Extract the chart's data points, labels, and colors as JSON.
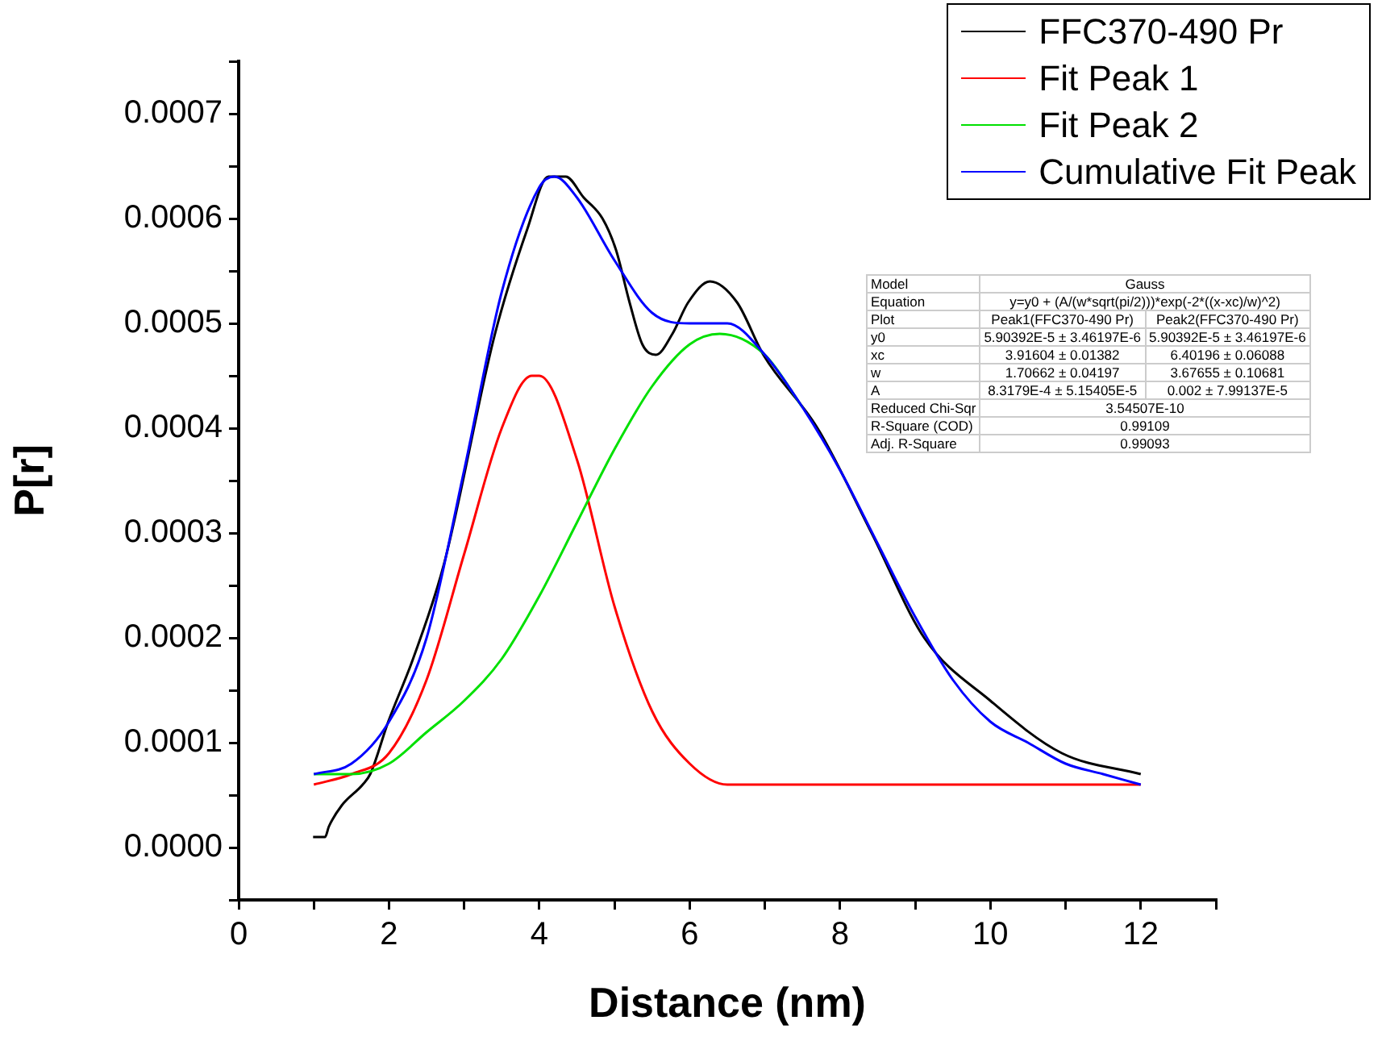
{
  "chart_data": {
    "type": "line",
    "xlabel": "Distance (nm)",
    "ylabel": "P[r]",
    "legend": "top right",
    "xlim": [
      0,
      13
    ],
    "xticks": [
      0,
      {
        "value": 1,
        "label": null
      },
      2,
      {
        "value": 3,
        "label": null
      },
      4,
      {
        "value": 5,
        "label": null
      },
      6,
      {
        "value": 7,
        "label": null
      },
      8,
      {
        "value": 9,
        "label": null
      },
      10,
      {
        "value": 11,
        "label": null
      },
      12,
      {
        "value": 13,
        "label": null
      }
    ],
    "ylim": [
      -5e-05,
      0.00075
    ],
    "yticks": [
      {
        "value": -5e-05,
        "label": null
      },
      {
        "value": 0,
        "label": "0.0000"
      },
      {
        "value": 5e-05,
        "label": null
      },
      {
        "value": 0.0001,
        "label": "0.0001"
      },
      {
        "value": 0.00015,
        "label": null
      },
      {
        "value": 0.0002,
        "label": "0.0002"
      },
      {
        "value": 0.00025,
        "label": null
      },
      {
        "value": 0.0003,
        "label": "0.0003"
      },
      {
        "value": 0.00035,
        "label": null
      },
      {
        "value": 0.0004,
        "label": "0.0004"
      },
      {
        "value": 0.00045,
        "label": null
      },
      {
        "value": 0.0005,
        "label": "0.0005"
      },
      {
        "value": 0.00055,
        "label": null
      },
      {
        "value": 0.0006,
        "label": "0.0006"
      },
      {
        "value": 0.00065,
        "label": null
      },
      {
        "value": 0.0007,
        "label": "0.0007"
      },
      {
        "value": 0.00075,
        "label": null
      }
    ],
    "series": [
      {
        "name": "FFC370-490 Pr",
        "color": "#000000",
        "x": [
          0.99,
          1.15,
          1.2,
          1.37,
          1.65,
          1.75,
          1.99,
          2.32,
          2.73,
          3.41,
          3.84,
          4.12,
          4.35,
          4.59,
          4.84,
          5.02,
          5.2,
          5.37,
          5.55,
          5.77,
          5.98,
          6.27,
          6.63,
          6.98,
          7.7,
          8.42,
          9.12,
          10.0,
          10.95,
          12.0
        ],
        "values": [
          1e-05,
          1e-05,
          2e-05,
          4e-05,
          6e-05,
          7e-05,
          0.00012,
          0.00018,
          0.00027,
          0.00049,
          0.00059,
          0.00064,
          0.00064,
          0.00062,
          0.0006,
          0.00057,
          0.00052,
          0.00048,
          0.00047,
          0.00049,
          0.00052,
          0.00054,
          0.00052,
          0.00047,
          0.0004,
          0.0003,
          0.0002,
          0.00014,
          9e-05,
          7e-05
        ]
      },
      {
        "name": "Fit Peak 1",
        "color": "#ff0000",
        "x": [
          1,
          1.5,
          2,
          2.5,
          3,
          3.5,
          3.9,
          4,
          4.5,
          5,
          5.5,
          6,
          6.5,
          7,
          7.5,
          8,
          9,
          10,
          11,
          12
        ],
        "values": [
          6e-05,
          7e-05,
          9e-05,
          0.00016,
          0.00028,
          0.0004,
          0.00045,
          0.00045,
          0.00037,
          0.00023,
          0.00013,
          8e-05,
          6e-05,
          6e-05,
          6e-05,
          6e-05,
          6e-05,
          6e-05,
          6e-05,
          6e-05
        ]
      },
      {
        "name": "Fit Peak 2",
        "color": "#00e000",
        "x": [
          1,
          1.5,
          2,
          2.5,
          3,
          3.5,
          4,
          4.5,
          5,
          5.5,
          6,
          6.4,
          7,
          7.5
        ],
        "values": [
          7e-05,
          7e-05,
          8e-05,
          0.00011,
          0.00014,
          0.00018,
          0.00024,
          0.00031,
          0.00038,
          0.00044,
          0.00048,
          0.00049,
          0.00047,
          0.00042
        ]
      },
      {
        "name": "Cumulative Fit Peak",
        "color": "#0000ff",
        "x": [
          1,
          1.5,
          2,
          2.5,
          3,
          3.5,
          4,
          4.2,
          4.5,
          5,
          5.5,
          6,
          6.5,
          7,
          7.5,
          8,
          8.5,
          9,
          9.5,
          10,
          10.5,
          11,
          11.5,
          12
        ],
        "values": [
          7e-05,
          8e-05,
          0.00012,
          0.0002,
          0.00036,
          0.00053,
          0.00063,
          0.00064,
          0.00062,
          0.00056,
          0.00051,
          0.0005,
          0.0005,
          0.00047,
          0.00042,
          0.00036,
          0.00029,
          0.00022,
          0.00016,
          0.00012,
          0.0001,
          8e-05,
          7e-05,
          6e-05
        ]
      }
    ],
    "annotations": [
      "Model",
      "Gauss",
      "Equation",
      "y=y0 + (A/(w*sqrt(pi/2)))*exp(-2*((x-xc)/w)^2)",
      "Plot",
      "Peak1(FFC370-490 Pr)",
      "Peak2(FFC370-490 Pr)",
      "y0",
      "5.90392E-5 ± 3.46197E-6",
      "5.90392E-5 ± 3.46197E-6",
      "xc",
      "3.91604 ± 0.01382",
      "6.40196 ± 0.06088",
      "w",
      "1.70662 ± 0.04197",
      "3.67655 ± 0.10681",
      "A",
      "8.3179E-4 ± 5.15405E-5",
      "0.002 ± 7.99137E-5",
      "Reduced Chi-Sqr",
      "3.54507E-10",
      "R-Square (COD)",
      "0.99109",
      "Adj. R-Square",
      "0.99093"
    ]
  }
}
